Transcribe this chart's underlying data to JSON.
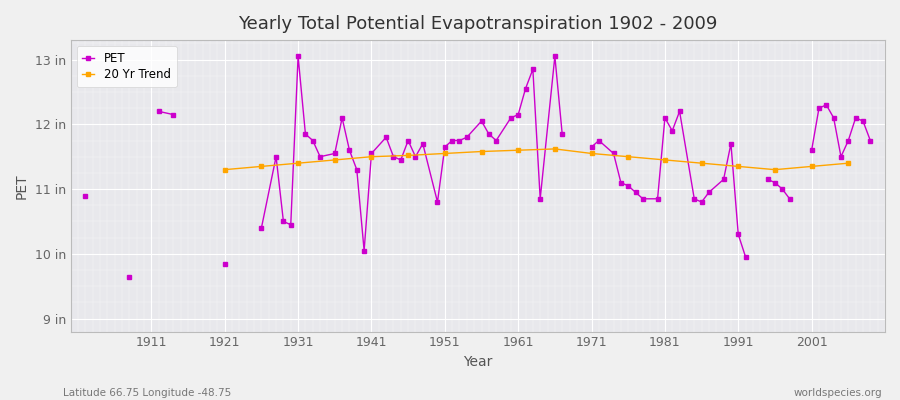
{
  "title": "Yearly Total Potential Evapotranspiration 1902 - 2009",
  "xlabel": "Year",
  "ylabel": "PET",
  "bottom_left_label": "Latitude 66.75 Longitude -48.75",
  "bottom_right_label": "worldspecies.org",
  "background_color": "#f0f0f0",
  "plot_bg_color": "#e8e8ec",
  "line_color": "#cc00cc",
  "trend_color": "#ffa500",
  "yticks": [
    9,
    10,
    11,
    12,
    13
  ],
  "ytick_labels": [
    "9 in",
    "10 in",
    "11 in",
    "12 in",
    "13 in"
  ],
  "xticks": [
    1911,
    1921,
    1931,
    1941,
    1951,
    1961,
    1971,
    1981,
    1991,
    2001
  ],
  "ylim": [
    8.8,
    13.3
  ],
  "xlim": [
    1900,
    2011
  ],
  "years": [
    1902,
    1908,
    1912,
    1914,
    1921,
    1926,
    1928,
    1929,
    1930,
    1931,
    1932,
    1933,
    1934,
    1936,
    1937,
    1938,
    1939,
    1940,
    1941,
    1943,
    1944,
    1945,
    1946,
    1947,
    1948,
    1950,
    1951,
    1952,
    1953,
    1954,
    1956,
    1957,
    1958,
    1960,
    1961,
    1962,
    1963,
    1964,
    1966,
    1967,
    1971,
    1972,
    1974,
    1975,
    1976,
    1977,
    1978,
    1980,
    1981,
    1982,
    1983,
    1985,
    1986,
    1987,
    1989,
    1990,
    1991,
    1992,
    1995,
    1996,
    1997,
    1998,
    2001,
    2002,
    2003,
    2004,
    2005,
    2006,
    2007,
    2008,
    2009
  ],
  "values": [
    10.9,
    9.65,
    12.2,
    12.15,
    9.85,
    10.4,
    11.5,
    10.5,
    10.45,
    13.05,
    11.85,
    11.75,
    11.5,
    11.55,
    12.1,
    11.6,
    11.3,
    10.05,
    11.55,
    11.8,
    11.5,
    11.45,
    11.75,
    11.5,
    11.7,
    10.8,
    11.65,
    11.75,
    11.75,
    11.8,
    12.05,
    11.85,
    11.75,
    12.1,
    12.15,
    12.55,
    12.85,
    10.85,
    13.05,
    11.85,
    11.65,
    11.75,
    11.55,
    11.1,
    11.05,
    10.95,
    10.85,
    10.85,
    12.1,
    11.9,
    12.2,
    10.85,
    10.8,
    10.95,
    11.15,
    11.7,
    10.3,
    9.95,
    11.15,
    11.1,
    11.0,
    10.85,
    11.6,
    12.25,
    12.3,
    12.1,
    11.5,
    11.75,
    12.1,
    12.05,
    11.75
  ],
  "trend_years": [
    1921,
    1926,
    1931,
    1936,
    1941,
    1946,
    1951,
    1956,
    1961,
    1966,
    1971,
    1976,
    1981,
    1986,
    1991,
    1996,
    2001,
    2006
  ],
  "trend_values": [
    11.3,
    11.35,
    11.4,
    11.45,
    11.5,
    11.52,
    11.55,
    11.58,
    11.6,
    11.62,
    11.55,
    11.5,
    11.45,
    11.4,
    11.35,
    11.3,
    11.35,
    11.4
  ]
}
